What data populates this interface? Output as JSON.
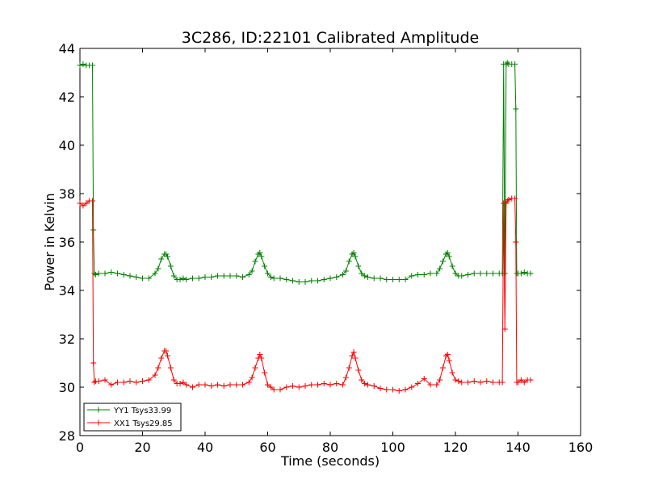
{
  "chart_data": {
    "type": "line",
    "title": "3C286, ID:22101 Calibrated Amplitude",
    "xlabel": "Time (seconds)",
    "ylabel": "Power in Kelvin",
    "xlim": [
      0,
      160
    ],
    "ylim": [
      28,
      44
    ],
    "xticks": [
      "0",
      "20",
      "40",
      "60",
      "80",
      "100",
      "120",
      "140",
      "160"
    ],
    "yticks": [
      "28",
      "30",
      "32",
      "34",
      "36",
      "38",
      "40",
      "42",
      "44"
    ],
    "grid": false,
    "legend_position": "lower-left",
    "marker": "+",
    "series": [
      {
        "name": "YY1 Tsys33.99",
        "color": "#008000",
        "x": [
          0,
          1,
          2,
          3,
          4,
          4.3,
          4.6,
          5,
          6,
          8,
          10,
          12,
          14,
          16,
          18,
          20,
          22,
          24,
          25,
          26,
          27,
          27.5,
          28,
          29,
          30,
          31,
          32,
          33,
          34,
          36,
          38,
          40,
          42,
          44,
          46,
          48,
          50,
          52,
          54,
          55,
          56,
          57,
          57.5,
          58,
          59,
          60,
          61,
          62,
          64,
          66,
          68,
          70,
          72,
          74,
          76,
          78,
          80,
          82,
          84,
          85,
          86,
          87,
          87.5,
          88,
          89,
          90,
          91,
          92,
          94,
          96,
          98,
          100,
          102,
          104,
          106,
          108,
          110,
          112,
          114,
          115,
          116,
          117,
          117.5,
          118,
          119,
          120,
          121,
          122,
          124,
          126,
          128,
          130,
          132,
          134,
          135,
          135.4,
          135.8,
          136.2,
          136.6,
          137,
          138,
          139,
          139.3,
          139.6,
          140,
          141,
          142,
          143,
          144
        ],
        "values": [
          43.3,
          43.35,
          43.3,
          43.3,
          43.3,
          36.5,
          34.7,
          34.65,
          34.7,
          34.7,
          34.75,
          34.7,
          34.65,
          34.6,
          34.55,
          34.5,
          34.5,
          34.7,
          34.9,
          35.3,
          35.5,
          35.5,
          35.4,
          35.0,
          34.6,
          34.45,
          34.45,
          34.5,
          34.45,
          34.5,
          34.5,
          34.55,
          34.55,
          34.6,
          34.6,
          34.6,
          34.6,
          34.55,
          34.65,
          34.8,
          35.2,
          35.5,
          35.55,
          35.4,
          35.0,
          34.7,
          34.55,
          34.5,
          34.5,
          34.45,
          34.4,
          34.35,
          34.35,
          34.4,
          34.4,
          34.45,
          34.5,
          34.55,
          34.65,
          34.8,
          35.2,
          35.5,
          35.55,
          35.4,
          35.0,
          34.7,
          34.6,
          34.55,
          34.5,
          34.5,
          34.45,
          34.45,
          34.45,
          34.45,
          34.6,
          34.65,
          34.65,
          34.7,
          34.7,
          34.9,
          35.2,
          35.5,
          35.55,
          35.4,
          35.0,
          34.7,
          34.6,
          34.6,
          34.65,
          34.7,
          34.7,
          34.7,
          34.7,
          34.7,
          34.7,
          43.35,
          34.7,
          43.35,
          43.4,
          43.35,
          43.35,
          43.35,
          41.5,
          34.7,
          34.7,
          34.7,
          34.75,
          34.7,
          34.7
        ]
      },
      {
        "name": "XX1 Tsys29.85",
        "color": "#ff0000",
        "x": [
          0,
          1,
          2,
          3,
          4,
          4.3,
          4.6,
          5,
          6,
          8,
          10,
          12,
          14,
          16,
          18,
          20,
          22,
          24,
          25,
          26,
          27,
          27.5,
          28,
          29,
          30,
          31,
          32,
          33,
          34,
          36,
          38,
          40,
          42,
          44,
          46,
          48,
          50,
          52,
          54,
          55,
          56,
          57,
          57.5,
          58,
          59,
          60,
          61,
          62,
          64,
          66,
          68,
          70,
          72,
          74,
          76,
          78,
          80,
          82,
          84,
          85,
          86,
          87,
          87.5,
          88,
          89,
          90,
          91,
          92,
          94,
          96,
          98,
          100,
          102,
          104,
          106,
          108,
          110,
          112,
          114,
          115,
          116,
          117,
          117.5,
          118,
          119,
          120,
          121,
          122,
          124,
          126,
          128,
          130,
          132,
          134,
          135,
          135.4,
          135.8,
          136.2,
          136.6,
          137,
          138,
          139,
          139.3,
          139.6,
          140,
          141,
          142,
          143,
          144
        ],
        "values": [
          37.6,
          37.5,
          37.6,
          37.7,
          37.7,
          31.0,
          30.2,
          30.25,
          30.25,
          30.3,
          30.1,
          30.2,
          30.2,
          30.25,
          30.2,
          30.25,
          30.3,
          30.5,
          30.8,
          31.2,
          31.5,
          31.5,
          31.3,
          30.8,
          30.3,
          30.15,
          30.15,
          30.2,
          30.1,
          30.0,
          30.1,
          30.1,
          30.05,
          30.1,
          30.05,
          30.1,
          30.1,
          30.1,
          30.2,
          30.4,
          30.8,
          31.2,
          31.35,
          31.2,
          30.6,
          30.1,
          30.0,
          29.9,
          29.9,
          30.0,
          30.05,
          30.0,
          30.05,
          30.1,
          30.1,
          30.15,
          30.1,
          30.15,
          30.1,
          30.4,
          30.8,
          31.3,
          31.45,
          31.2,
          30.7,
          30.3,
          30.15,
          30.1,
          30.05,
          29.95,
          29.9,
          29.9,
          29.85,
          29.9,
          30.0,
          30.15,
          30.35,
          30.1,
          30.1,
          30.3,
          30.8,
          31.3,
          31.35,
          31.1,
          30.6,
          30.3,
          30.25,
          30.2,
          30.2,
          30.25,
          30.2,
          30.25,
          30.2,
          30.2,
          30.2,
          37.6,
          32.4,
          37.6,
          37.7,
          37.75,
          37.8,
          37.8,
          36.0,
          30.2,
          30.2,
          30.3,
          30.2,
          30.3,
          30.3
        ]
      }
    ]
  }
}
